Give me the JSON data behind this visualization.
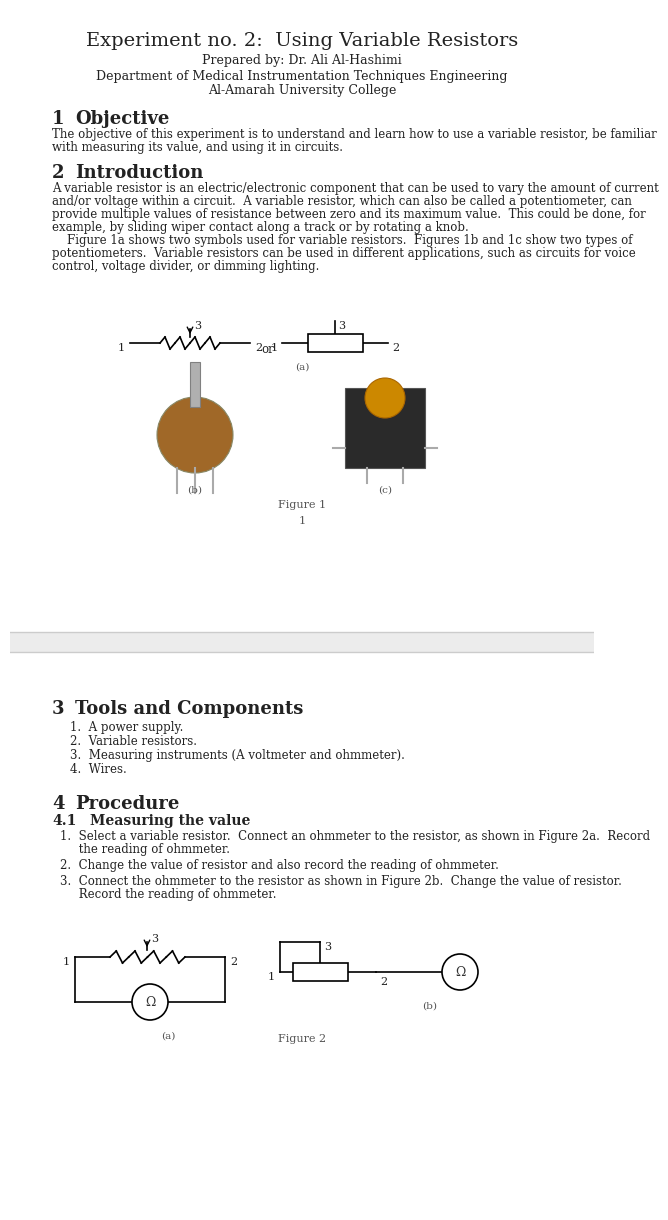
{
  "title": "Experiment no. 2:  Using Variable Resistors",
  "prepared_by": "Prepared by: Dr. Ali Al-Hashimi",
  "department": "Department of Medical Instrumentation Techniques Engineering",
  "college": "Al-Amarah University College",
  "section1_num": "1",
  "section1_head": "Objective",
  "section1_body": [
    "The objective of this experiment is to understand and learn how to use a variable resistor, be familiar",
    "with measuring its value, and using it in circuits."
  ],
  "section2_num": "2",
  "section2_head": "Introduction",
  "section2_body": [
    "A variable resistor is an electric/electronic component that can be used to vary the amount of current",
    "and/or voltage within a circuit.  A variable resistor, which can also be called a potentiometer, can",
    "provide multiple values of resistance between zero and its maximum value.  This could be done, for",
    "example, by sliding wiper contact along a track or by rotating a knob.",
    "    Figure 1a shows two symbols used for variable resistors.  Figures 1b and 1c show two types of",
    "potentiometers.  Variable resistors can be used in different applications, such as circuits for voice",
    "control, voltage divider, or dimming lighting."
  ],
  "figure1_caption": "Figure 1",
  "page1_num": "1",
  "section3_num": "3",
  "section3_head": "Tools and Components",
  "section3_items": [
    "1.  A power supply.",
    "2.  Variable resistors.",
    "3.  Measuring instruments (A voltmeter and ohmmeter).",
    "4.  Wires."
  ],
  "section4_num": "4",
  "section4_head": "Procedure",
  "section4_1_head": "4.1",
  "section4_1_sub": "Measuring the value",
  "section4_steps": [
    [
      "1.  Select a variable resistor.  Connect an ohmmeter to the resistor, as shown in Figure 2a.  Record",
      "     the reading of ohmmeter."
    ],
    [
      "2.  Change the value of resistor and also record the reading of ohmmeter."
    ],
    [
      "3.  Connect the ohmmeter to the resistor as shown in Figure 2b.  Change the value of resistor.",
      "     Record the reading of ohmmeter."
    ]
  ],
  "figure2_caption": "Figure 2",
  "bg_color": "#ffffff",
  "text_color": "#222222",
  "gray_color": "#555555",
  "page2_bg": "#ececec"
}
